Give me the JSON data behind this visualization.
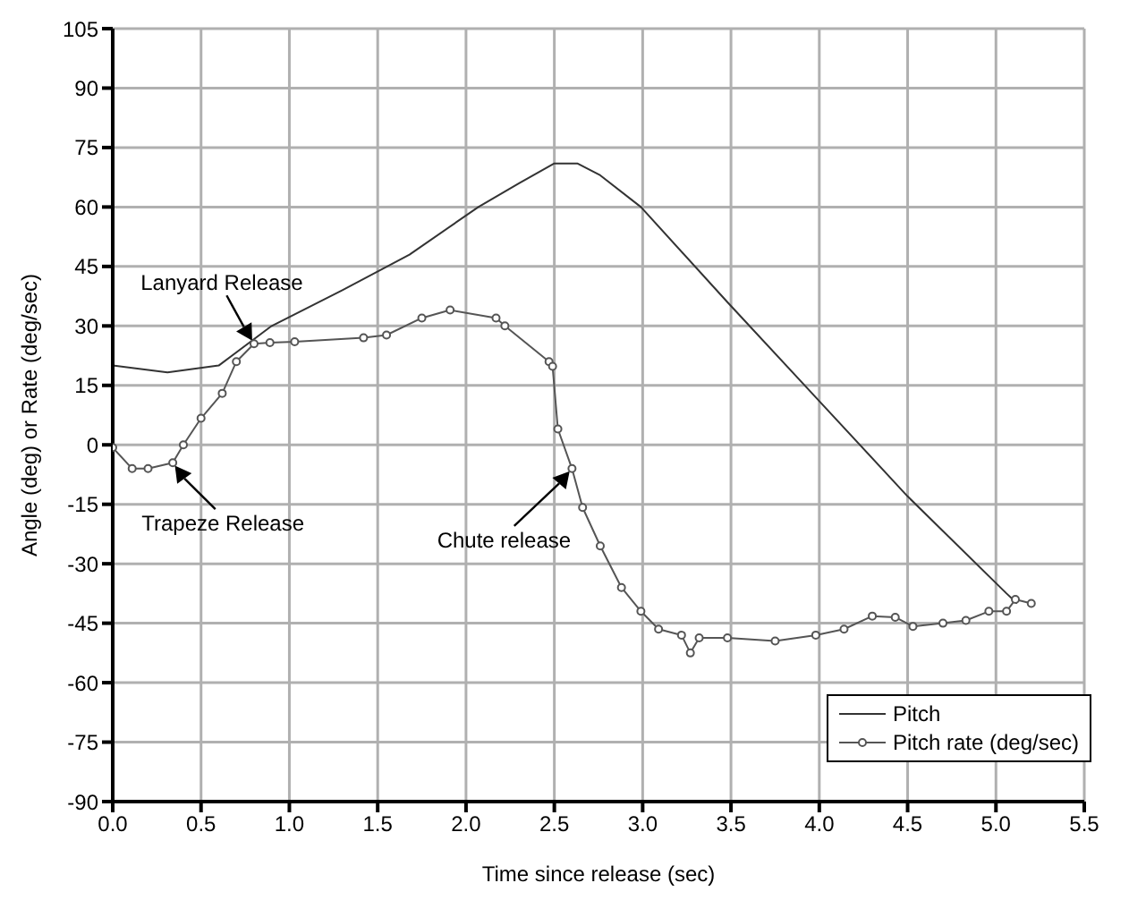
{
  "chart_data": {
    "type": "line",
    "xlabel": "Time since release (sec)",
    "ylabel": "Angle (deg) or Rate (deg/sec)",
    "xlim": [
      0,
      5.5
    ],
    "xticks": [
      {
        "value": 0,
        "label": "0.0"
      },
      {
        "value": 0.5,
        "label": "0.5"
      },
      {
        "value": 1,
        "label": "1.0"
      },
      {
        "value": 1.5,
        "label": "1.5"
      },
      {
        "value": 2,
        "label": "2.0"
      },
      {
        "value": 2.5,
        "label": "2.5"
      },
      {
        "value": 3,
        "label": "3.0"
      },
      {
        "value": 3.5,
        "label": "3.5"
      },
      {
        "value": 4,
        "label": "4.0"
      },
      {
        "value": 4.5,
        "label": "4.5"
      },
      {
        "value": 5,
        "label": "5.0"
      },
      {
        "value": 5.5,
        "label": "5.5"
      }
    ],
    "ylim": [
      -90,
      105
    ],
    "yticks": [
      -90,
      -75,
      -60,
      -45,
      -30,
      -15,
      0,
      15,
      30,
      45,
      60,
      75,
      90,
      105
    ],
    "grid": true,
    "legend": "bottom right",
    "series": [
      {
        "name": "Pitch",
        "color": "#333333",
        "marker": "none",
        "x": [
          0,
          0.31,
          0.6,
          0.9,
          1.3,
          1.68,
          2.07,
          2.3,
          2.5,
          2.63,
          2.76,
          2.99,
          3.48,
          3.98,
          4.5,
          5.06,
          5.12
        ],
        "values": [
          20,
          18.3,
          20,
          30,
          39,
          48,
          60,
          66,
          71,
          71,
          68,
          60,
          36,
          12,
          -13,
          -37.5,
          -40
        ]
      },
      {
        "name": "Pitch rate (deg/sec)",
        "color": "#555555",
        "marker": "circle",
        "x": [
          0,
          0.11,
          0.2,
          0.34,
          0.4,
          0.5,
          0.62,
          0.7,
          0.8,
          0.89,
          1.03,
          1.42,
          1.55,
          1.75,
          1.91,
          2.17,
          2.22,
          2.47,
          2.49,
          2.52,
          2.6,
          2.66,
          2.76,
          2.88,
          2.99,
          3.09,
          3.22,
          3.27,
          3.32,
          3.48,
          3.75,
          3.98,
          4.14,
          4.3,
          4.43,
          4.53,
          4.7,
          4.83,
          4.96,
          5.06,
          5.11,
          5.2
        ],
        "values": [
          -0.7,
          -6,
          -6,
          -4.5,
          0,
          6.7,
          13,
          21,
          25.5,
          25.8,
          26,
          27,
          27.7,
          32,
          34,
          32,
          30,
          21,
          19.8,
          4,
          -6,
          -15.8,
          -25.5,
          -36,
          -42,
          -46.5,
          -48,
          -52.5,
          -48.7,
          -48.7,
          -49.5,
          -48,
          -46.5,
          -43.2,
          -43.5,
          -45.8,
          -45,
          -44.3,
          -42,
          -42,
          -39,
          -40
        ]
      }
    ],
    "annotations": [
      {
        "text": "Lanyard Release",
        "x": 0.8,
        "y": 25.5
      },
      {
        "text": "Trapeze Release",
        "x": 0.34,
        "y": -4.5
      },
      {
        "text": "Chute release",
        "x": 2.6,
        "y": -6
      }
    ]
  }
}
